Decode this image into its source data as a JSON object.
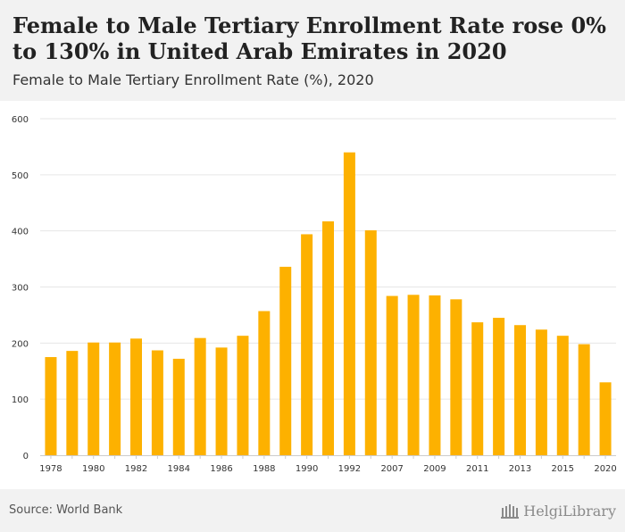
{
  "header": {
    "title": "Female to Male Tertiary Enrollment Rate rose 0% to 130% in United Arab Emirates in 2020",
    "subtitle": "Female to Male Tertiary Enrollment Rate (%), 2020"
  },
  "footer": {
    "source": "Source: World Bank",
    "logo_text": "HelgiLibrary"
  },
  "colors": {
    "bar": "#FDB100",
    "grid": "#e6e6e6",
    "axis_text": "#333333"
  },
  "chart_data": {
    "type": "bar",
    "categories": [
      "1978",
      "1979",
      "1980",
      "1981",
      "1982",
      "1983",
      "1984",
      "1985",
      "1986",
      "1987",
      "1988",
      "1989",
      "1990",
      "1991",
      "1992",
      "1993",
      "2007",
      "2008",
      "2009",
      "2010",
      "2011",
      "2012",
      "2013",
      "2014",
      "2015",
      "2016",
      "2020"
    ],
    "x_tick_labels": [
      "1978",
      "",
      "1980",
      "",
      "1982",
      "",
      "1984",
      "",
      "1986",
      "",
      "1988",
      "",
      "1990",
      "",
      "1992",
      "",
      "2007",
      "",
      "2009",
      "",
      "2011",
      "",
      "2013",
      "",
      "2015",
      "",
      "2020"
    ],
    "values": [
      175,
      186,
      201,
      201,
      208,
      187,
      172,
      209,
      192,
      213,
      257,
      336,
      394,
      417,
      540,
      401,
      284,
      286,
      285,
      278,
      237,
      245,
      232,
      224,
      213,
      198,
      130
    ],
    "ylim": [
      0,
      600
    ],
    "y_ticks": [
      0,
      100,
      200,
      300,
      400,
      500,
      600
    ],
    "grid": true,
    "title": "",
    "xlabel": "",
    "ylabel": ""
  }
}
